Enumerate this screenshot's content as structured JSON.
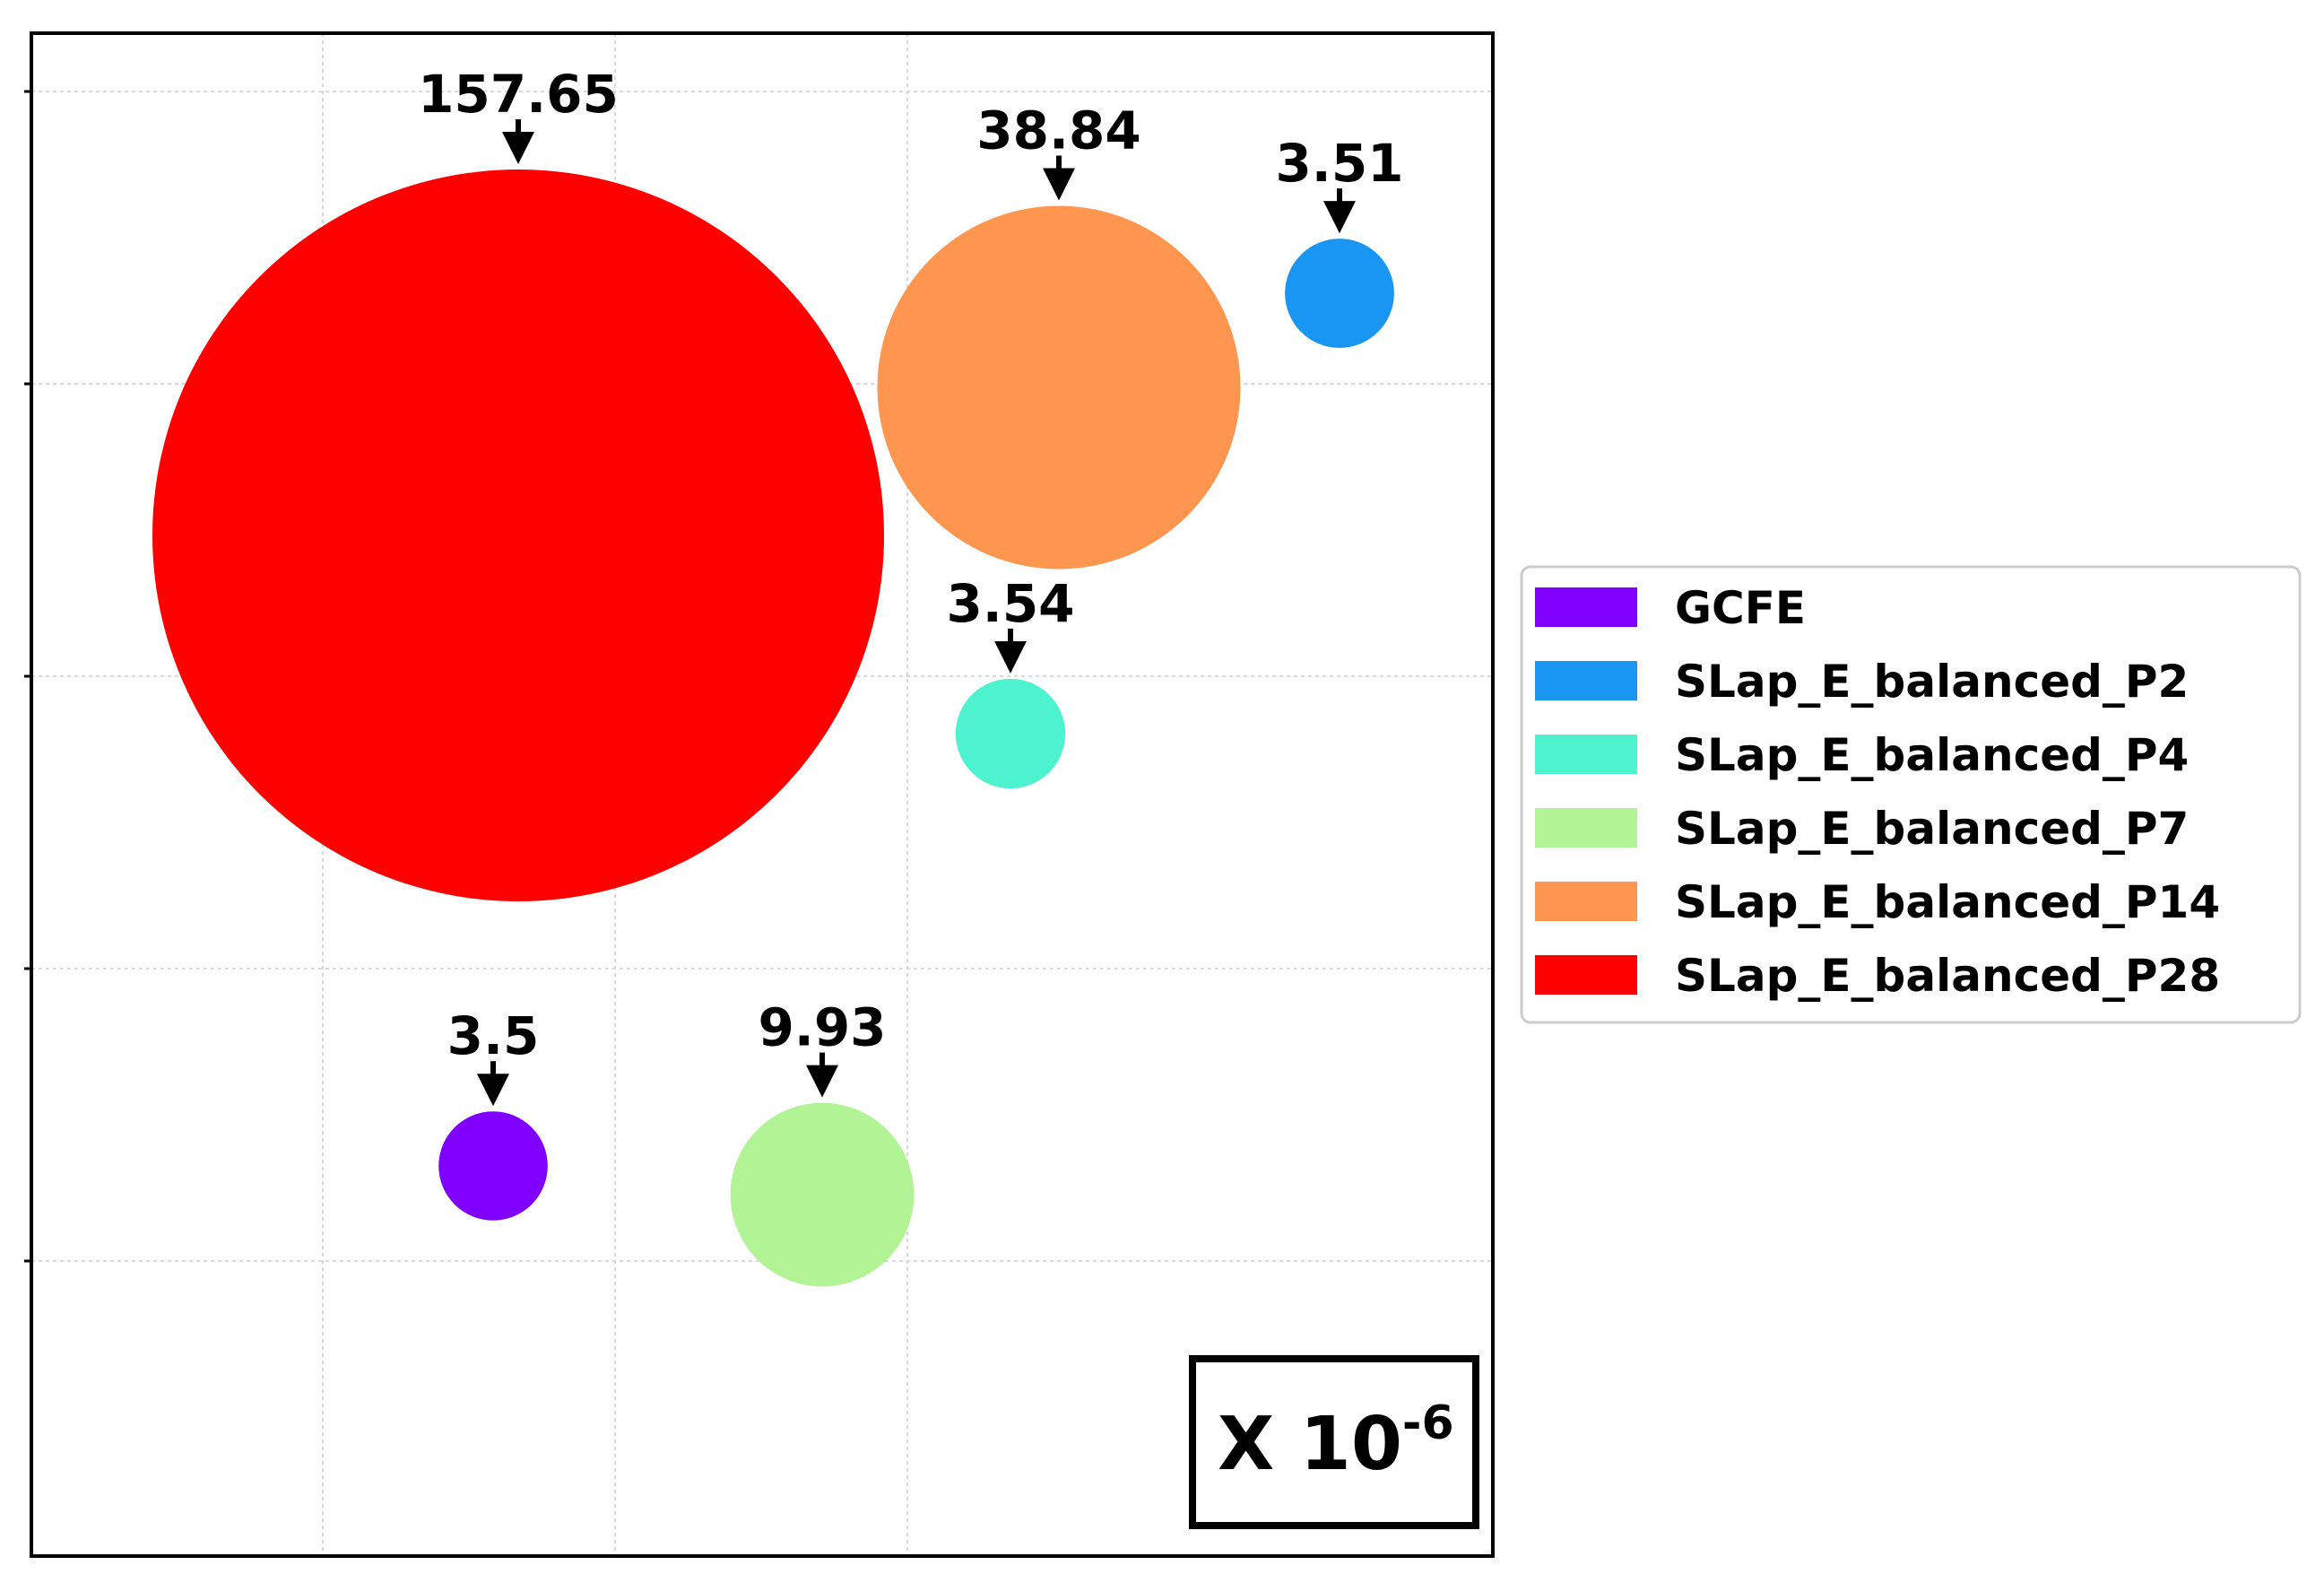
{
  "chart_data": {
    "type": "bubble",
    "title": "",
    "xlabel": "",
    "ylabel": "",
    "grid": true,
    "legend_placement": "outside-right",
    "scale_note": {
      "base": "X 10",
      "exponent": "-6"
    },
    "series": [
      {
        "name": "GCFE",
        "value": 3.5,
        "label": "3.5",
        "color": "#8000ff"
      },
      {
        "name": "SLap_E_balanced_P2",
        "value": 3.51,
        "label": "3.51",
        "color": "#1996f3"
      },
      {
        "name": "SLap_E_balanced_P4",
        "value": 3.54,
        "label": "3.54",
        "color": "#4df3ce"
      },
      {
        "name": "SLap_E_balanced_P7",
        "value": 9.93,
        "label": "9.93",
        "color": "#b2f396"
      },
      {
        "name": "SLap_E_balanced_P14",
        "value": 38.84,
        "label": "38.84",
        "color": "#ff964f"
      },
      {
        "name": "SLap_E_balanced_P28",
        "value": 157.65,
        "label": "157.65",
        "color": "#ff0000"
      }
    ]
  }
}
